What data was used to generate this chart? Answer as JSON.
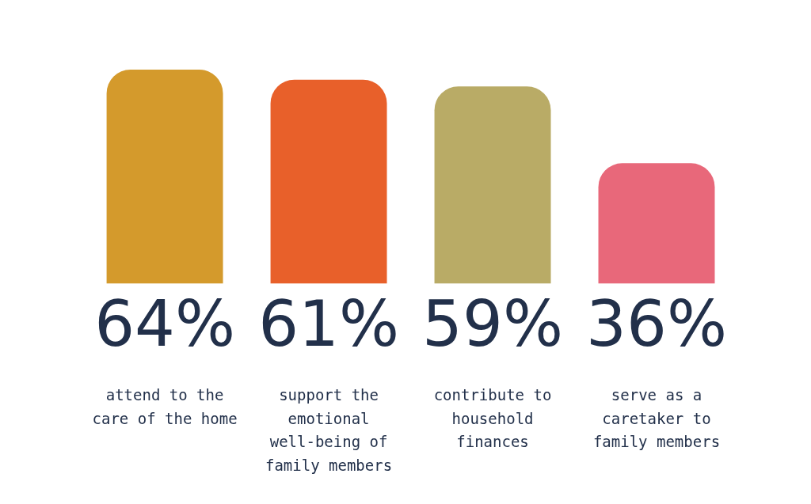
{
  "chart_data": {
    "type": "bar",
    "categories": [
      "attend to the care of the home",
      "support the emotional well-being of family members",
      "contribute to household finances",
      "serve as a caretaker to family members"
    ],
    "values": [
      64,
      61,
      59,
      36
    ],
    "colors": [
      "#d49a2c",
      "#e8602a",
      "#b9ab66",
      "#e8687a"
    ],
    "value_labels": [
      "64%",
      "61%",
      "59%",
      "36%"
    ],
    "grid": false,
    "legend": false,
    "tick_labels": "x"
  }
}
